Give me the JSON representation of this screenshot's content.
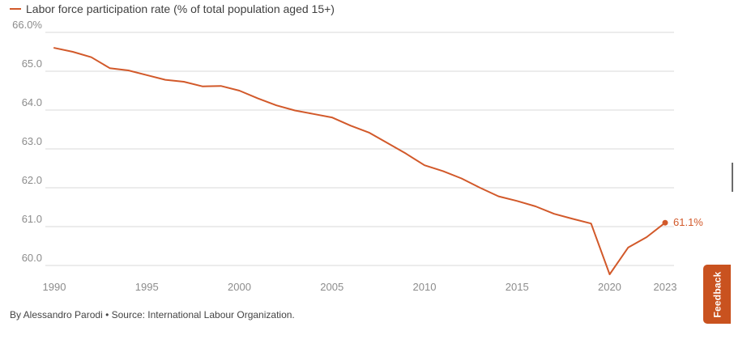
{
  "colors": {
    "series": "#d2592a",
    "grid": "#d9d9d9",
    "axis_text": "#8c8c8c",
    "feedback_bg": "#c9521f"
  },
  "chart_data": {
    "type": "line",
    "series": [
      {
        "name": "Labor force participation rate (% of total population aged 15+)",
        "x": [
          1990,
          1991,
          1992,
          1993,
          1994,
          1995,
          1996,
          1997,
          1998,
          1999,
          2000,
          2001,
          2002,
          2003,
          2004,
          2005,
          2006,
          2007,
          2008,
          2009,
          2010,
          2011,
          2012,
          2013,
          2014,
          2015,
          2016,
          2017,
          2018,
          2019,
          2020,
          2021,
          2022,
          2023
        ],
        "values": [
          65.6,
          65.5,
          65.36,
          65.08,
          65.02,
          64.9,
          64.78,
          64.73,
          64.61,
          64.62,
          64.5,
          64.3,
          64.12,
          63.99,
          63.9,
          63.81,
          63.6,
          63.42,
          63.15,
          62.88,
          62.58,
          62.43,
          62.24,
          62.0,
          61.78,
          61.66,
          61.52,
          61.33,
          61.2,
          61.08,
          59.77,
          60.46,
          60.73,
          61.1
        ]
      }
    ],
    "end_label": "61.1%",
    "ylim": [
      59.7,
      66.0
    ],
    "yticks": [
      "66.0%",
      "65.0",
      "64.0",
      "63.0",
      "62.0",
      "61.0",
      "60.0"
    ],
    "ytick_values": [
      66,
      65,
      64,
      63,
      62,
      61,
      60
    ],
    "xticks": [
      "1990",
      "1995",
      "2000",
      "2005",
      "2010",
      "2015",
      "2020",
      "2023"
    ],
    "xtick_values": [
      1990,
      1995,
      2000,
      2005,
      2010,
      2015,
      2020,
      2023
    ],
    "grid": true,
    "legend_position": "top-left"
  },
  "legend": {
    "label": "Labor force participation rate (% of total population aged 15+)"
  },
  "source": {
    "text": "By Alessandro Parodi • Source: International Labour Organization."
  },
  "feedback": {
    "label": "Feedback"
  }
}
